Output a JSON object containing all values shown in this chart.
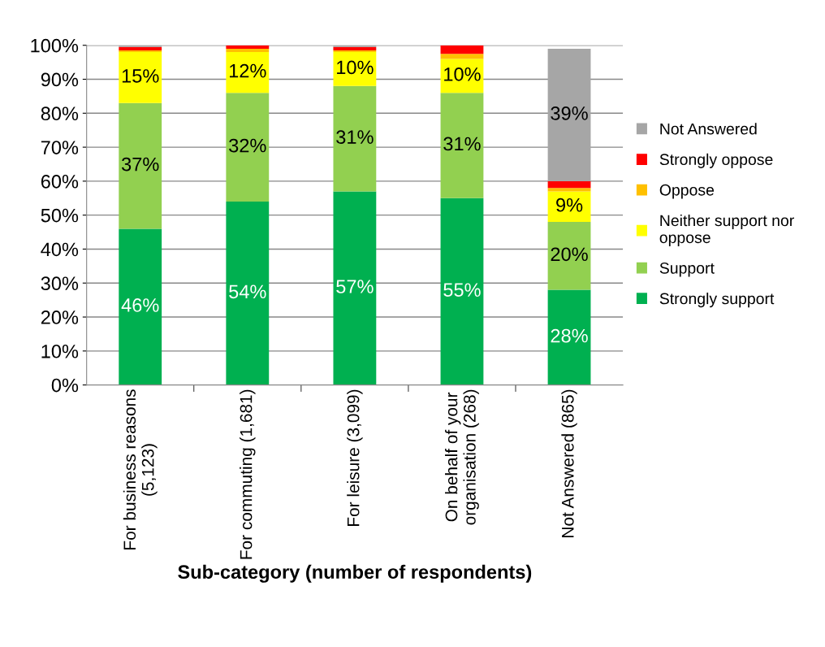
{
  "chart_data": {
    "type": "bar",
    "stacked": true,
    "xlabel": "Sub-category (number of respondents)",
    "categories": [
      "For business reasons\n(5,123)",
      "For commuting (1,681)",
      "For leisure (3,099)",
      "On behalf of your\norganisation (268)",
      "Not Answered (865)"
    ],
    "series": [
      {
        "name": "Strongly support",
        "color": "#00b050",
        "values": [
          46,
          54,
          57,
          55,
          28
        ],
        "value_labels": [
          "46%",
          "54%",
          "57%",
          "55%",
          "28%"
        ]
      },
      {
        "name": "Support",
        "color": "#92d050",
        "values": [
          37,
          32,
          31,
          31,
          20
        ],
        "value_labels": [
          "37%",
          "32%",
          "31%",
          "31%",
          "20%"
        ]
      },
      {
        "name": "Neither support nor\noppose",
        "color": "#ffff00",
        "values": [
          15,
          12,
          10,
          10,
          9
        ],
        "value_labels": [
          "15%",
          "12%",
          "10%",
          "10%",
          "9%"
        ]
      },
      {
        "name": "Oppose",
        "color": "#ffc000",
        "values": [
          0.5,
          1,
          0.5,
          1.5,
          1
        ]
      },
      {
        "name": "Strongly oppose",
        "color": "#ff0000",
        "values": [
          1,
          1,
          1,
          2.5,
          2
        ]
      },
      {
        "name": "Not Answered",
        "color": "#a6a6a6",
        "values": [
          0.5,
          0,
          0.5,
          0,
          39
        ],
        "value_labels": [
          null,
          null,
          null,
          null,
          "39%"
        ]
      }
    ],
    "ylim": [
      0,
      100
    ],
    "yticks": [
      {
        "value": 0,
        "label": "0%"
      },
      {
        "value": 10,
        "label": "10%"
      },
      {
        "value": 20,
        "label": "20%"
      },
      {
        "value": 30,
        "label": "30%"
      },
      {
        "value": 40,
        "label": "40%"
      },
      {
        "value": 50,
        "label": "50%"
      },
      {
        "value": 60,
        "label": "60%"
      },
      {
        "value": 70,
        "label": "70%"
      },
      {
        "value": 80,
        "label": "80%"
      },
      {
        "value": 90,
        "label": "90%"
      },
      {
        "value": 100,
        "label": "100%"
      }
    ],
    "grid": "y",
    "legend": "right"
  }
}
